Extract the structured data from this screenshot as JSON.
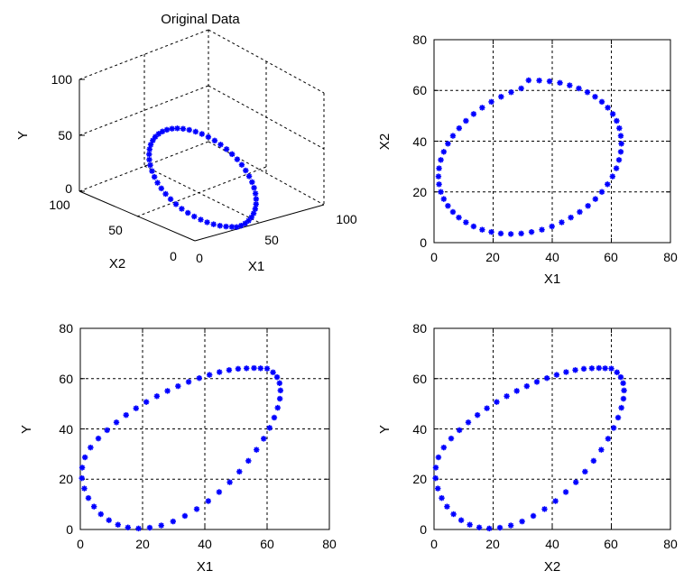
{
  "chart_data": [
    {
      "type": "scatter3d",
      "title": "Original Data",
      "xlabel": "X1",
      "ylabel": "X2",
      "zlabel": "Y",
      "xlim": [
        0,
        100
      ],
      "ylim": [
        0,
        100
      ],
      "zlim": [
        0,
        100
      ],
      "x_ticks": [
        "0",
        "50",
        "100"
      ],
      "y_ticks": [
        "0",
        "50",
        "100"
      ],
      "z_ticks": [
        "0",
        "50",
        "100"
      ],
      "grid": true,
      "view": "3-D default (az -37.5, el 30)",
      "marker": "*",
      "color": "#0000ff",
      "series": [
        {
          "shape": "tilted circle",
          "points": {
            "x1": [
              32.5,
              36.1,
              39.7,
              43.3,
              46.8,
              50.0,
              53.0,
              55.7,
              58.1,
              60.1,
              61.7,
              62.9,
              63.6,
              63.9,
              63.8,
              63.2,
              62.1,
              60.6,
              58.7,
              56.5,
              53.9,
              51.0,
              47.9,
              44.5,
              41.0,
              37.4,
              33.8,
              30.1,
              26.5,
              23.0,
              19.6,
              16.4,
              13.4,
              10.7,
              8.3,
              6.2,
              4.5,
              3.2,
              2.3,
              1.8,
              1.8,
              2.2,
              3.1,
              4.3,
              6.0,
              8.1,
              10.5,
              13.2,
              16.1,
              19.3,
              22.6,
              26.1,
              29.7
            ],
            "x2": [
              0.1,
              0.3,
              0.9,
              1.9,
              3.3,
              5.0,
              7.0,
              9.3,
              11.9,
              14.7,
              17.7,
              20.8,
              24.1,
              27.4,
              30.7,
              34.0,
              37.2,
              40.3,
              43.3,
              46.0,
              48.6,
              50.9,
              52.9,
              54.6,
              56.0,
              57.0,
              57.6,
              57.9,
              57.7,
              57.1,
              56.2,
              54.8,
              53.2,
              51.2,
              48.9,
              46.4,
              43.7,
              40.7,
              37.6,
              34.4,
              31.1,
              27.8,
              24.5,
              21.2,
              18.1,
              15.1,
              12.3,
              9.7,
              7.4,
              5.4,
              3.6,
              2.2,
              1.2
            ],
            "y": [
              1.8,
              1.8,
              2.3,
              3.2,
              4.5,
              6.2,
              8.3,
              10.7,
              13.4,
              16.4,
              19.6,
              23.0,
              26.5,
              30.1,
              33.8,
              37.4,
              41.0,
              44.5,
              47.9,
              51.0,
              53.9,
              56.5,
              58.7,
              60.6,
              62.1,
              63.2,
              63.8,
              63.9,
              63.6,
              62.9,
              61.7,
              60.1,
              58.1,
              55.7,
              53.0,
              50.0,
              46.8,
              43.3,
              39.7,
              36.1,
              32.5,
              28.9,
              25.4,
              22.0,
              18.7,
              15.7,
              12.9,
              10.4,
              8.1,
              6.2,
              4.6,
              3.4,
              2.4
            ]
          }
        }
      ]
    },
    {
      "type": "scatter",
      "title": "",
      "xlabel": "X1",
      "ylabel": "X2",
      "xlim": [
        0,
        80
      ],
      "ylim": [
        0,
        80
      ],
      "x_ticks": [
        "0",
        "20",
        "40",
        "60",
        "80"
      ],
      "y_ticks": [
        "0",
        "20",
        "40",
        "60",
        "80"
      ],
      "grid": true,
      "marker": "*",
      "color": "#0000ff",
      "series": [
        {
          "shape": "circle",
          "x": [
            32.0,
            35.6,
            39.1,
            42.6,
            45.9,
            49.0,
            51.9,
            54.5,
            56.8,
            58.8,
            60.5,
            61.8,
            62.7,
            63.2,
            63.4,
            63.2,
            62.6,
            61.7,
            60.4,
            58.7,
            56.8,
            54.6,
            52.1,
            49.3,
            46.3,
            43.2,
            39.9,
            36.5,
            33.0,
            29.5,
            26.0,
            22.6,
            19.4,
            16.3,
            13.4,
            10.8,
            8.4,
            6.4,
            4.7,
            3.3,
            2.3,
            1.7,
            1.5,
            1.7,
            2.3,
            3.3,
            4.7,
            6.4,
            8.5,
            10.8,
            13.4,
            16.3,
            19.4,
            22.7,
            26.1,
            29.5
          ],
          "y": [
            64.0,
            63.9,
            63.6,
            63.0,
            62.0,
            60.8,
            59.3,
            57.5,
            55.5,
            53.2,
            50.7,
            48.0,
            45.1,
            42.1,
            39.0,
            35.8,
            32.6,
            29.3,
            26.1,
            23.0,
            20.0,
            17.2,
            14.5,
            12.1,
            9.9,
            8.0,
            6.4,
            5.1,
            4.2,
            3.6,
            3.4,
            3.6,
            4.2,
            5.1,
            6.4,
            8.0,
            9.9,
            12.1,
            14.5,
            17.2,
            20.0,
            23.0,
            26.1,
            29.3,
            32.6,
            35.8,
            39.0,
            42.1,
            45.1,
            48.0,
            50.7,
            53.2,
            55.5,
            57.5,
            59.3,
            60.8
          ]
        }
      ]
    },
    {
      "type": "scatter",
      "title": "",
      "xlabel": "X1",
      "ylabel": "Y",
      "xlim": [
        0,
        80
      ],
      "ylim": [
        0,
        80
      ],
      "x_ticks": [
        "0",
        "20",
        "40",
        "60",
        "80"
      ],
      "y_ticks": [
        "0",
        "20",
        "40",
        "60",
        "80"
      ],
      "grid": true,
      "marker": "*",
      "color": "#0000ff",
      "series": [
        {
          "shape": "tilted ellipse",
          "x": [
            60.0,
            61.9,
            63.2,
            64.0,
            64.3,
            64.1,
            63.4,
            62.3,
            60.8,
            58.9,
            56.6,
            54.0,
            51.1,
            48.0,
            44.6,
            41.1,
            37.4,
            33.6,
            29.8,
            26.0,
            22.3,
            18.7,
            15.3,
            12.1,
            9.2,
            6.6,
            4.4,
            2.6,
            1.3,
            0.5,
            0.6,
            1.5,
            3.3,
            5.8,
            8.6,
            11.6,
            14.7,
            17.9,
            21.2,
            24.6,
            28.0,
            31.4,
            34.8,
            38.2,
            41.5,
            44.7,
            47.8,
            50.7,
            53.4,
            55.8,
            57.9
          ],
          "y": [
            64.0,
            62.5,
            60.6,
            58.2,
            55.3,
            52.0,
            48.4,
            44.5,
            40.4,
            36.1,
            31.7,
            27.3,
            23.0,
            18.8,
            14.9,
            11.3,
            8.1,
            5.4,
            3.2,
            1.6,
            0.7,
            0.4,
            0.8,
            1.9,
            3.7,
            6.1,
            9.1,
            12.5,
            16.3,
            20.4,
            24.6,
            28.7,
            32.6,
            36.2,
            39.5,
            42.6,
            45.5,
            48.2,
            50.7,
            53.0,
            55.1,
            57.0,
            58.7,
            60.2,
            61.5,
            62.6,
            63.4,
            63.9,
            64.1,
            64.2,
            64.1
          ]
        }
      ]
    },
    {
      "type": "scatter",
      "title": "",
      "xlabel": "X2",
      "ylabel": "Y",
      "xlim": [
        0,
        80
      ],
      "ylim": [
        0,
        80
      ],
      "x_ticks": [
        "0",
        "20",
        "40",
        "60",
        "80"
      ],
      "y_ticks": [
        "0",
        "20",
        "40",
        "60",
        "80"
      ],
      "grid": true,
      "marker": "*",
      "color": "#0000ff",
      "series": [
        {
          "shape": "tilted ellipse",
          "x": [
            60.0,
            61.9,
            63.2,
            64.0,
            64.3,
            64.1,
            63.4,
            62.3,
            60.8,
            58.9,
            56.6,
            54.0,
            51.1,
            48.0,
            44.6,
            41.1,
            37.4,
            33.6,
            29.8,
            26.0,
            22.3,
            18.7,
            15.3,
            12.1,
            9.2,
            6.6,
            4.4,
            2.6,
            1.3,
            0.5,
            0.6,
            1.5,
            3.3,
            5.8,
            8.6,
            11.6,
            14.7,
            17.9,
            21.2,
            24.6,
            28.0,
            31.4,
            34.8,
            38.2,
            41.5,
            44.7,
            47.8,
            50.7,
            53.4,
            55.8,
            57.9
          ],
          "y": [
            64.0,
            62.5,
            60.6,
            58.2,
            55.3,
            52.0,
            48.4,
            44.5,
            40.4,
            36.1,
            31.7,
            27.3,
            23.0,
            18.8,
            14.9,
            11.3,
            8.1,
            5.4,
            3.2,
            1.6,
            0.7,
            0.4,
            0.8,
            1.9,
            3.7,
            6.1,
            9.1,
            12.5,
            16.3,
            20.4,
            24.6,
            28.7,
            32.6,
            36.2,
            39.5,
            42.6,
            45.5,
            48.2,
            50.7,
            53.0,
            55.1,
            57.0,
            58.7,
            60.2,
            61.5,
            62.6,
            63.4,
            63.9,
            64.1,
            64.2,
            64.1
          ]
        }
      ]
    }
  ]
}
